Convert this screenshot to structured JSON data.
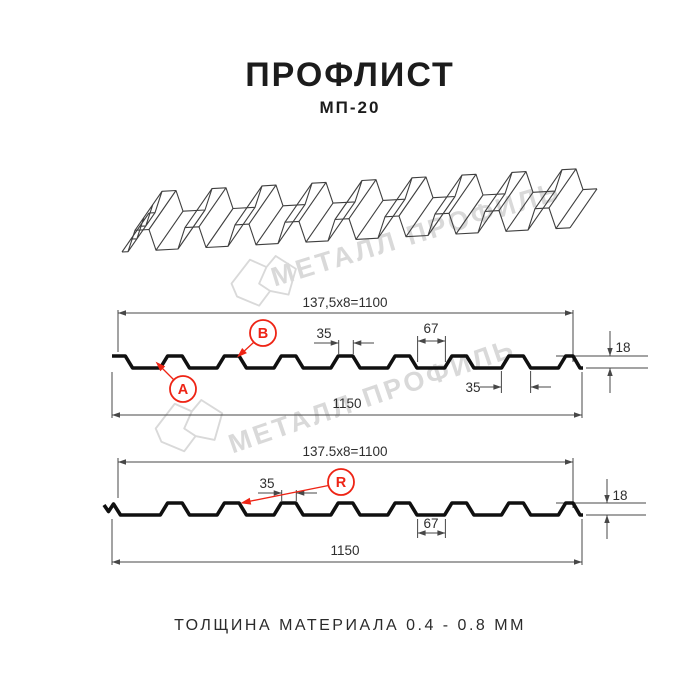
{
  "header": {
    "title": "ПРОФЛИСТ",
    "subtitle": "МП-20"
  },
  "footer": {
    "text": "ТОЛЩИНА МАТЕРИАЛА 0.4 - 0.8 ММ"
  },
  "watermark": {
    "text": "МЕТАЛЛ ПРОФИЛЬ",
    "logo_icon": "metal-profil-crystal-logo"
  },
  "colors": {
    "accent_red": "#ee2415",
    "dim_line": "#474747",
    "profile_black": "#101010",
    "watermark_gray": "#d9d9d9",
    "title_black": "#1c1c1c"
  },
  "diagram_top": {
    "coverage_width_dim": "137,5x8=1100",
    "overall_width_dim": "1150",
    "crest_width_dim": "35",
    "flat_width_dim": "67",
    "height_dim": "18",
    "edge_rib_dim": "35",
    "label_a": "A",
    "label_b": "B"
  },
  "diagram_bottom": {
    "coverage_width_dim": "137.5x8=1100",
    "overall_width_dim": "1150",
    "crest_width_dim": "35",
    "flat_width_dim": "67",
    "height_dim": "18",
    "label_r": "R"
  }
}
